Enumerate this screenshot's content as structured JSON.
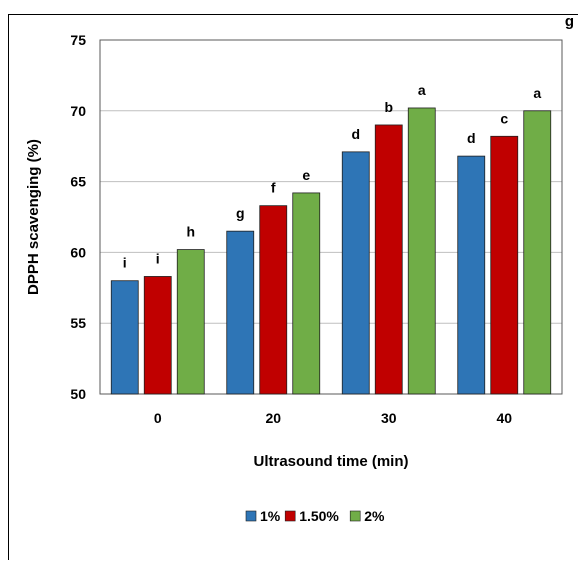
{
  "corner_text": "g",
  "chart_data": {
    "type": "bar",
    "categories": [
      "0",
      "20",
      "30",
      "40"
    ],
    "series": [
      {
        "name": "1%",
        "values": [
          58.0,
          61.5,
          67.1,
          66.8
        ],
        "labels": [
          "i",
          "g",
          "d",
          "d"
        ],
        "color": "#2e75b6"
      },
      {
        "name": "1.50%",
        "values": [
          58.3,
          63.3,
          69.0,
          68.2
        ],
        "labels": [
          "i",
          "f",
          "b",
          "c"
        ],
        "color": "#c00000"
      },
      {
        "name": "2%",
        "values": [
          60.2,
          64.2,
          70.2,
          70.0
        ],
        "labels": [
          "h",
          "e",
          "a",
          "a"
        ],
        "color": "#70ad47"
      }
    ],
    "xlabel": "Ultrasound time (min)",
    "ylabel": "DPPH scavenging (%)",
    "ylim": [
      50,
      75
    ],
    "yticks": [
      50,
      55,
      60,
      65,
      70,
      75
    ],
    "grid": true,
    "legend_position": "bottom"
  }
}
